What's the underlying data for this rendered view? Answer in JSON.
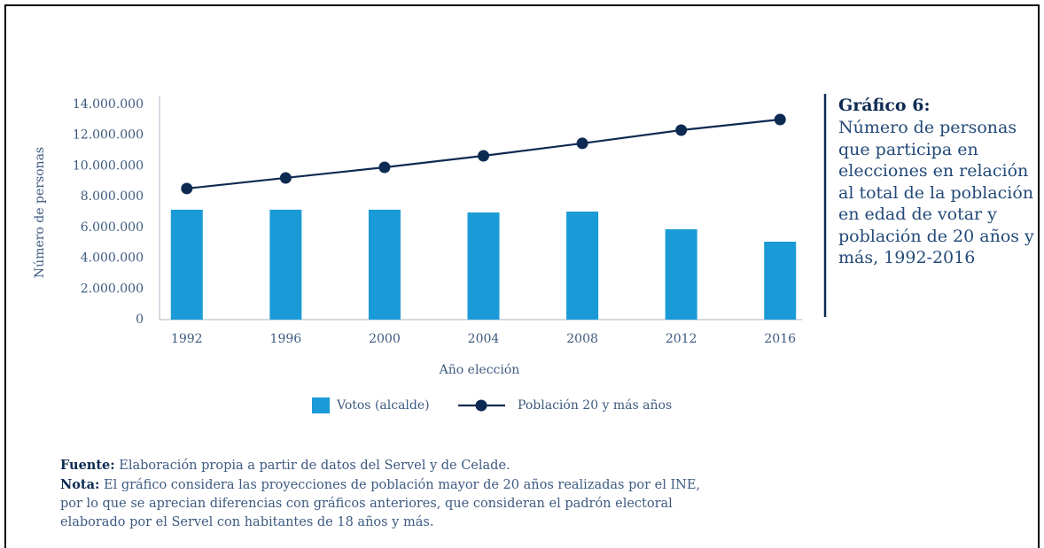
{
  "chart_data": {
    "type": "bar",
    "title": "Gráfico 6:",
    "subtitle": "Número de personas que participa en elecciones en relación al total de la población en edad de votar y población de 20 años y más, 1992-2016",
    "x_label": "Año elección",
    "y_label": "Número de personas",
    "categories": [
      "1992",
      "1996",
      "2000",
      "2004",
      "2008",
      "2012",
      "2016"
    ],
    "series": [
      {
        "name": "Votos (alcalde)",
        "type": "bar",
        "color": "#1a9ad6",
        "values": [
          7150000,
          7150000,
          7150000,
          6970000,
          7030000,
          5880000,
          5070000
        ]
      },
      {
        "name": "Población 20 y más años",
        "type": "line",
        "color": "#0d2a52",
        "values": [
          8530000,
          9220000,
          9910000,
          10660000,
          11470000,
          12330000,
          13020000
        ]
      }
    ],
    "ylim": [
      0,
      14000000
    ],
    "yticks": [
      0,
      {
        "value": 2000000,
        "label": "2.000.000"
      },
      {
        "value": 4000000,
        "label": "4.000.000"
      },
      {
        "value": 6000000,
        "label": "6.000.000"
      },
      {
        "value": 8000000,
        "label": "8.000.000"
      },
      {
        "value": 10000000,
        "label": "10.000.000"
      },
      {
        "value": 12000000,
        "label": "12.000.000"
      },
      {
        "value": 14000000,
        "label": "14.000.000"
      }
    ],
    "legend": "bottom",
    "grid": false,
    "notes": [
      {
        "label": "Fuente:",
        "text": "Elaboración propia a partir de datos del Servel y de Celade."
      },
      {
        "label": "Nota:",
        "text": "El gráfico considera las proyecciones de población mayor de 20 años realizadas por el INE, por lo que se aprecian diferencias con gráficos anteriores, que consideran el padrón electoral elaborado por el Servel con habitantes de 18 años y más."
      }
    ]
  }
}
